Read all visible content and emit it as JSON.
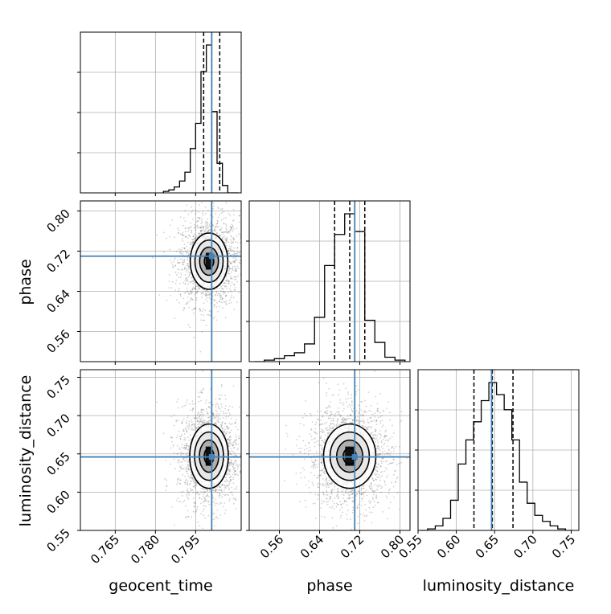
{
  "colors": {
    "truth": "#4682b4",
    "grid": "#b0b0b0",
    "frame": "#000000",
    "contour": "#000000"
  },
  "chart_data": {
    "type": "corner",
    "grid": true,
    "parameters": [
      {
        "name": "geocent_time",
        "label": "geocent_time",
        "range": [
          0.752,
          0.812
        ],
        "ticks": [
          0.765,
          0.78,
          0.795
        ],
        "tick_labels": [
          "0.765",
          "0.780",
          "0.795"
        ],
        "truth": 0.801,
        "median": 0.801,
        "quantiles": [
          0.798,
          0.801,
          0.804
        ],
        "hist": {
          "bins": [
            0.783,
            0.785,
            0.787,
            0.789,
            0.791,
            0.793,
            0.795,
            0.797,
            0.799,
            0.801,
            0.803,
            0.805,
            0.807,
            0.809,
            0.811
          ],
          "counts": [
            1,
            2,
            4,
            8,
            14,
            30,
            47,
            82,
            100,
            55,
            20,
            5,
            0,
            0
          ]
        }
      },
      {
        "name": "phase",
        "label": "phase",
        "range": [
          0.5,
          0.82
        ],
        "ticks": [
          0.56,
          0.64,
          0.72,
          0.8
        ],
        "tick_labels": [
          "0.56",
          "0.64",
          "0.72",
          "0.80"
        ],
        "truth": 0.71,
        "median": 0.7,
        "quantiles": [
          0.67,
          0.7,
          0.73
        ],
        "hist": {
          "bins": [
            0.51,
            0.53,
            0.55,
            0.57,
            0.59,
            0.61,
            0.63,
            0.65,
            0.67,
            0.69,
            0.71,
            0.73,
            0.75,
            0.77,
            0.79,
            0.81
          ],
          "counts": [
            0,
            1,
            2,
            4,
            6,
            12,
            30,
            65,
            86,
            100,
            88,
            28,
            13,
            3,
            1
          ]
        }
      },
      {
        "name": "luminosity_distance",
        "label": "luminosity_distance",
        "range": [
          0.55,
          0.76
        ],
        "ticks": [
          0.55,
          0.6,
          0.65,
          0.7,
          0.75
        ],
        "tick_labels": [
          "0.55",
          "0.60",
          "0.65",
          "0.70",
          "0.75"
        ],
        "truth": 0.646,
        "median": 0.647,
        "quantiles": [
          0.623,
          0.647,
          0.674
        ],
        "hist": {
          "bins": [
            0.5525,
            0.5625,
            0.5725,
            0.5825,
            0.5925,
            0.6025,
            0.6125,
            0.6225,
            0.6325,
            0.6425,
            0.6525,
            0.6625,
            0.6725,
            0.6825,
            0.6925,
            0.7025,
            0.7125,
            0.7225,
            0.7325,
            0.7425,
            0.7525
          ],
          "counts": [
            0,
            1,
            3,
            8,
            20,
            44,
            60,
            72,
            86,
            98,
            90,
            80,
            60,
            32,
            18,
            10,
            6,
            3,
            1,
            0
          ]
        }
      }
    ],
    "pairs": [
      {
        "x": "geocent_time",
        "y": "phase",
        "center": [
          0.8,
          0.7
        ],
        "sigma": [
          0.0035,
          0.028
        ],
        "contour_levels": [
          0.5,
          1.0,
          1.5,
          2.0
        ]
      },
      {
        "x": "geocent_time",
        "y": "luminosity_distance",
        "center": [
          0.8,
          0.647
        ],
        "sigma": [
          0.0036,
          0.021
        ],
        "contour_levels": [
          0.5,
          1.0,
          1.5,
          2.0
        ]
      },
      {
        "x": "phase",
        "y": "luminosity_distance",
        "center": [
          0.7,
          0.647
        ],
        "sigma": [
          0.026,
          0.021
        ],
        "contour_levels": [
          0.5,
          1.0,
          1.5,
          2.0
        ]
      }
    ]
  }
}
